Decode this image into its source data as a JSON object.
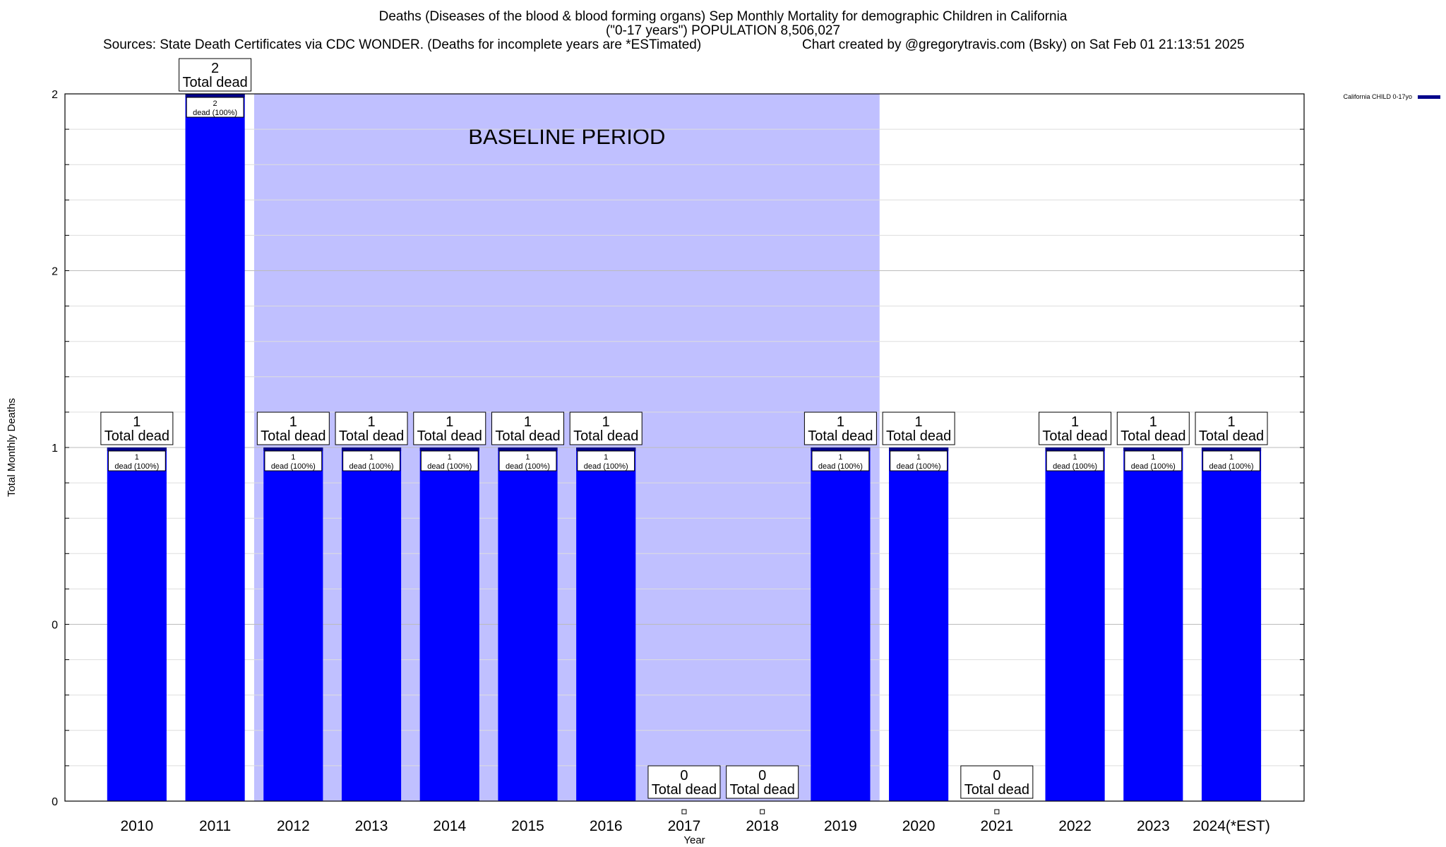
{
  "header": {
    "title_line1": "Deaths (Diseases of the blood & blood forming organs) Sep Monthly Mortality for demographic Children in California",
    "title_line2": "(\"0-17 years\") POPULATION 8,506,027",
    "sources": "Sources: State Death Certificates via CDC WONDER. (Deaths for incomplete years are *ESTimated)",
    "credit": "Chart created by @gregorytravis.com (Bsky) on Sat Feb 01 21:13:51 2025"
  },
  "chart_data": {
    "type": "bar",
    "categories": [
      "2010",
      "2011",
      "2012",
      "2013",
      "2014",
      "2015",
      "2016",
      "2017",
      "2018",
      "2019",
      "2020",
      "2021",
      "2022",
      "2023",
      "2024(*EST)"
    ],
    "series": [
      {
        "name": "California CHILD 0-17yo",
        "values": [
          1,
          2,
          1,
          1,
          1,
          1,
          1,
          0,
          0,
          1,
          1,
          0,
          1,
          1,
          1
        ]
      }
    ],
    "xlabel": "Year",
    "ylabel": "Total Monthly Deaths",
    "ylim": [
      0,
      2
    ],
    "yticks": [
      {
        "value": 0,
        "label": "0"
      },
      {
        "value": 0.5,
        "label": "0"
      },
      {
        "value": 1,
        "label": "1"
      },
      {
        "value": 1.5,
        "label": "2"
      },
      {
        "value": 2,
        "label": "2"
      }
    ],
    "grid": true,
    "legend_position": "top-right",
    "total_label_text": "Total dead",
    "segment_label_text": "dead (100%)",
    "baseline_period": {
      "label": "BASELINE PERIOD",
      "from": "2012",
      "to": "2019"
    },
    "colors": {
      "bar": "#0000ff",
      "bar_top": "#00008b",
      "baseline": "#c0c0ff"
    }
  }
}
